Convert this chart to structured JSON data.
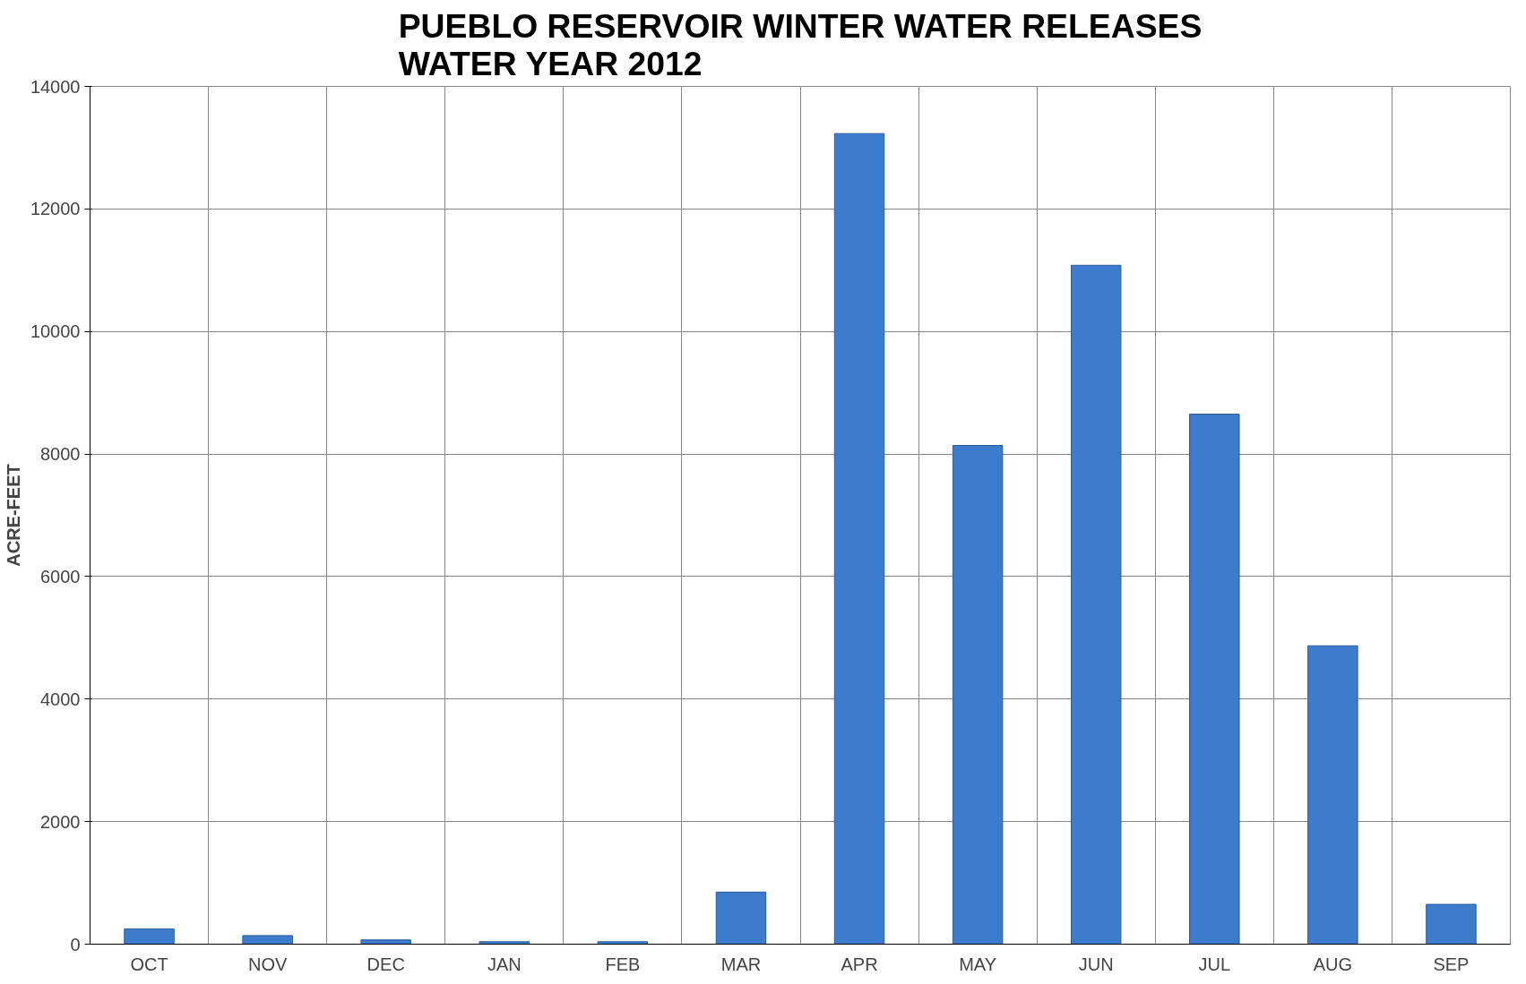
{
  "chart_data": {
    "type": "bar",
    "title": "PUEBLO RESERVOIR WINTER WATER RELEASES\nWATER YEAR 2012",
    "ylabel": "ACRE-FEET",
    "categories": [
      "OCT",
      "NOV",
      "DEC",
      "JAN",
      "FEB",
      "MAR",
      "APR",
      "MAY",
      "JUN",
      "JUL",
      "AUG",
      "SEP"
    ],
    "values": [
      250,
      140,
      70,
      40,
      40,
      850,
      13230,
      8140,
      11080,
      8650,
      4870,
      650
    ],
    "color": "#3d7ccc",
    "ylim": [
      0,
      14000
    ],
    "yticks": [
      0,
      2000,
      4000,
      6000,
      8000,
      10000,
      12000,
      14000
    ],
    "grid": true
  }
}
